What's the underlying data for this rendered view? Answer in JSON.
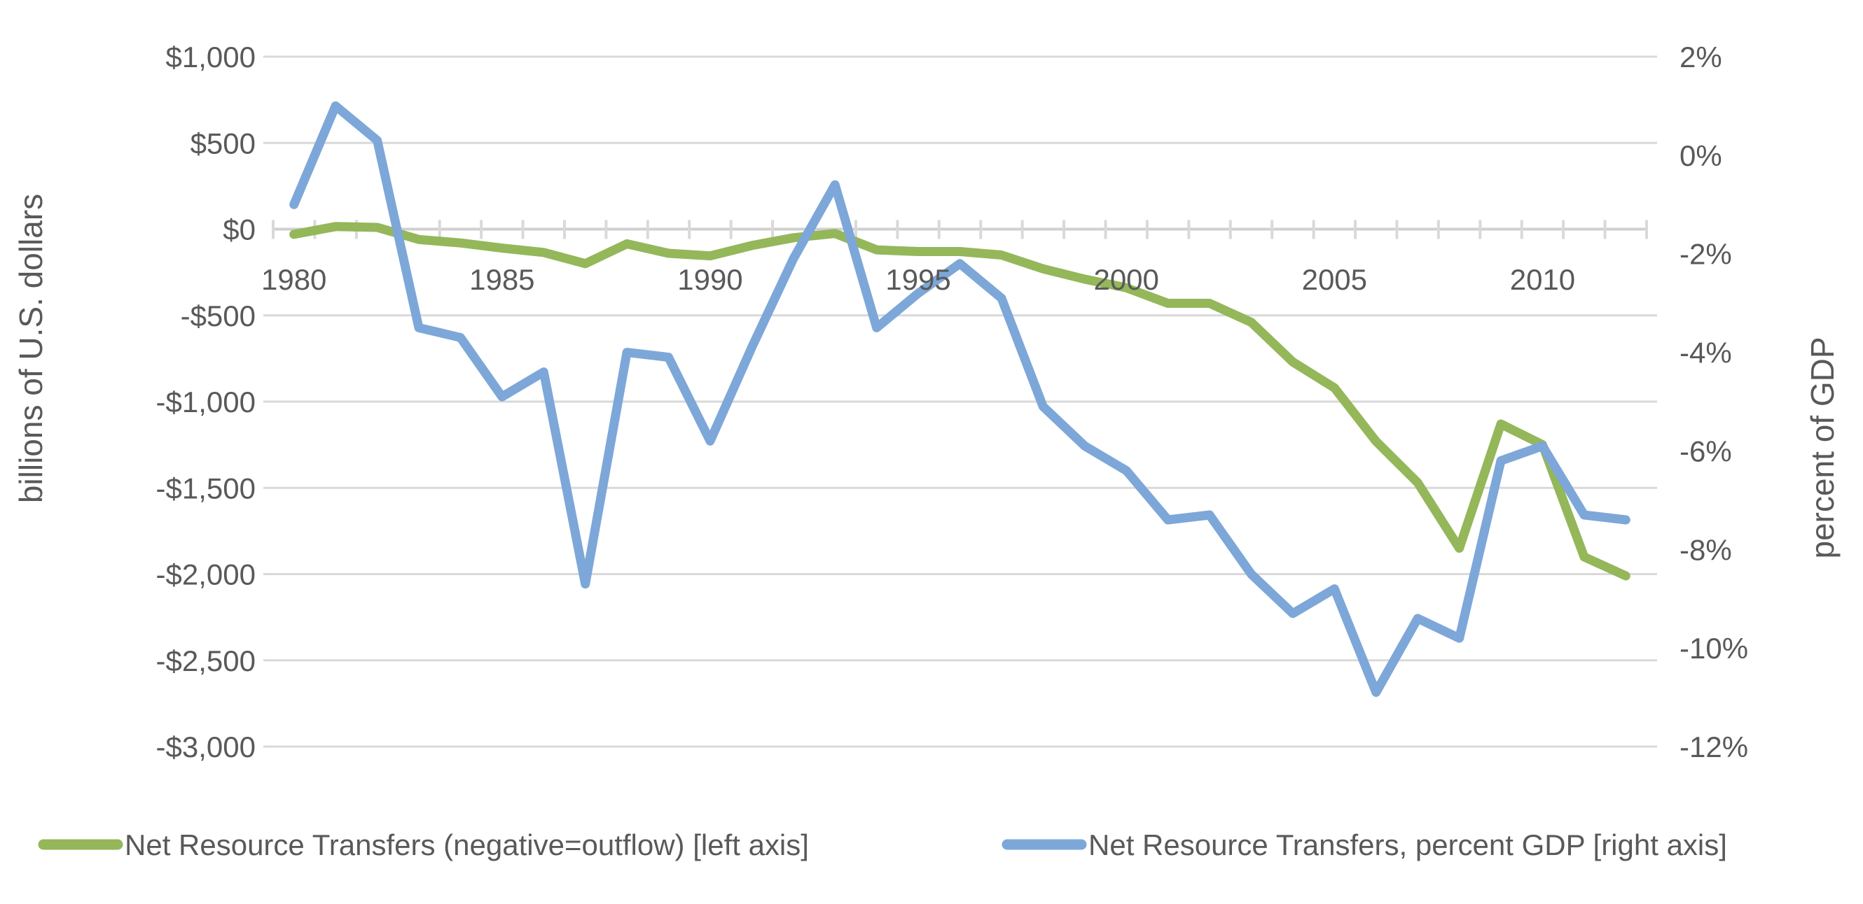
{
  "chart_data": {
    "type": "line",
    "title": "",
    "x": [
      1980,
      1981,
      1982,
      1983,
      1984,
      1985,
      1986,
      1987,
      1988,
      1989,
      1990,
      1991,
      1992,
      1993,
      1994,
      1995,
      1996,
      1997,
      1998,
      1999,
      2000,
      2001,
      2002,
      2003,
      2004,
      2005,
      2006,
      2007,
      2008,
      2009,
      2010,
      2011,
      2012
    ],
    "x_tick_labels": [
      "1980",
      "1985",
      "1990",
      "1995",
      "2000",
      "2005",
      "2010"
    ],
    "x_tick_years": [
      1980,
      1985,
      1990,
      1995,
      2000,
      2005,
      2010
    ],
    "grid": true,
    "legend_position": "bottom",
    "left_axis": {
      "title": "billions of U.S. dollars",
      "min": -3000,
      "max": 1000,
      "tick_step": 500,
      "tick_labels": [
        "$1,000",
        "$500",
        "$0",
        "-$500",
        "-$1,000",
        "-$1,500",
        "-$2,000",
        "-$2,500",
        "-$3,000"
      ],
      "tick_values": [
        1000,
        500,
        0,
        -500,
        -1000,
        -1500,
        -2000,
        -2500,
        -3000
      ]
    },
    "right_axis": {
      "title": "percent of GDP",
      "min": -12,
      "max": 2,
      "tick_step": 2,
      "tick_labels": [
        "2%",
        "0%",
        "-2%",
        "-4%",
        "-6%",
        "-8%",
        "-10%",
        "-12%"
      ],
      "tick_values": [
        2,
        0,
        -2,
        -4,
        -6,
        -8,
        -10,
        -12
      ]
    },
    "series": [
      {
        "name": "Net Resource Transfers (negative=outflow) [left axis]",
        "axis": "left",
        "color": "#94B75A",
        "units": "billions of U.S. dollars",
        "values": [
          -30,
          15,
          10,
          -60,
          -80,
          -110,
          -135,
          -200,
          -85,
          -140,
          -155,
          -95,
          -50,
          -25,
          -120,
          -130,
          -130,
          -150,
          -230,
          -290,
          -340,
          -430,
          -430,
          -540,
          -770,
          -920,
          -1230,
          -1470,
          -1850,
          -1130,
          -1250,
          -1900,
          -2010
        ]
      },
      {
        "name": "Net Resource Transfers, percent GDP [right axis]",
        "axis": "right",
        "color": "#7DA7D8",
        "units": "percent of GDP",
        "values": [
          -1.0,
          1.0,
          0.3,
          -3.5,
          -3.7,
          -4.9,
          -4.4,
          -8.7,
          -4.0,
          -4.1,
          -5.8,
          -3.9,
          -2.1,
          -0.6,
          -3.5,
          -2.8,
          -2.2,
          -2.9,
          -5.1,
          -5.9,
          -6.4,
          -7.4,
          -7.3,
          -8.5,
          -9.3,
          -8.8,
          -10.9,
          -9.4,
          -9.8,
          -6.2,
          -5.9,
          -7.3,
          -7.4
        ]
      }
    ],
    "colors": {
      "gridline": "#D9D9D9",
      "axis_line": "#D0D0D0",
      "tick_mark": "#D9D9D9",
      "label_text": "#595959",
      "background": "#FFFFFF"
    }
  },
  "legend": {
    "items": [
      {
        "label": "Net Resource Transfers (negative=outflow) [left axis]",
        "color": "#94B75A"
      },
      {
        "label": "Net Resource Transfers, percent GDP [right axis]",
        "color": "#7DA7D8"
      }
    ]
  }
}
